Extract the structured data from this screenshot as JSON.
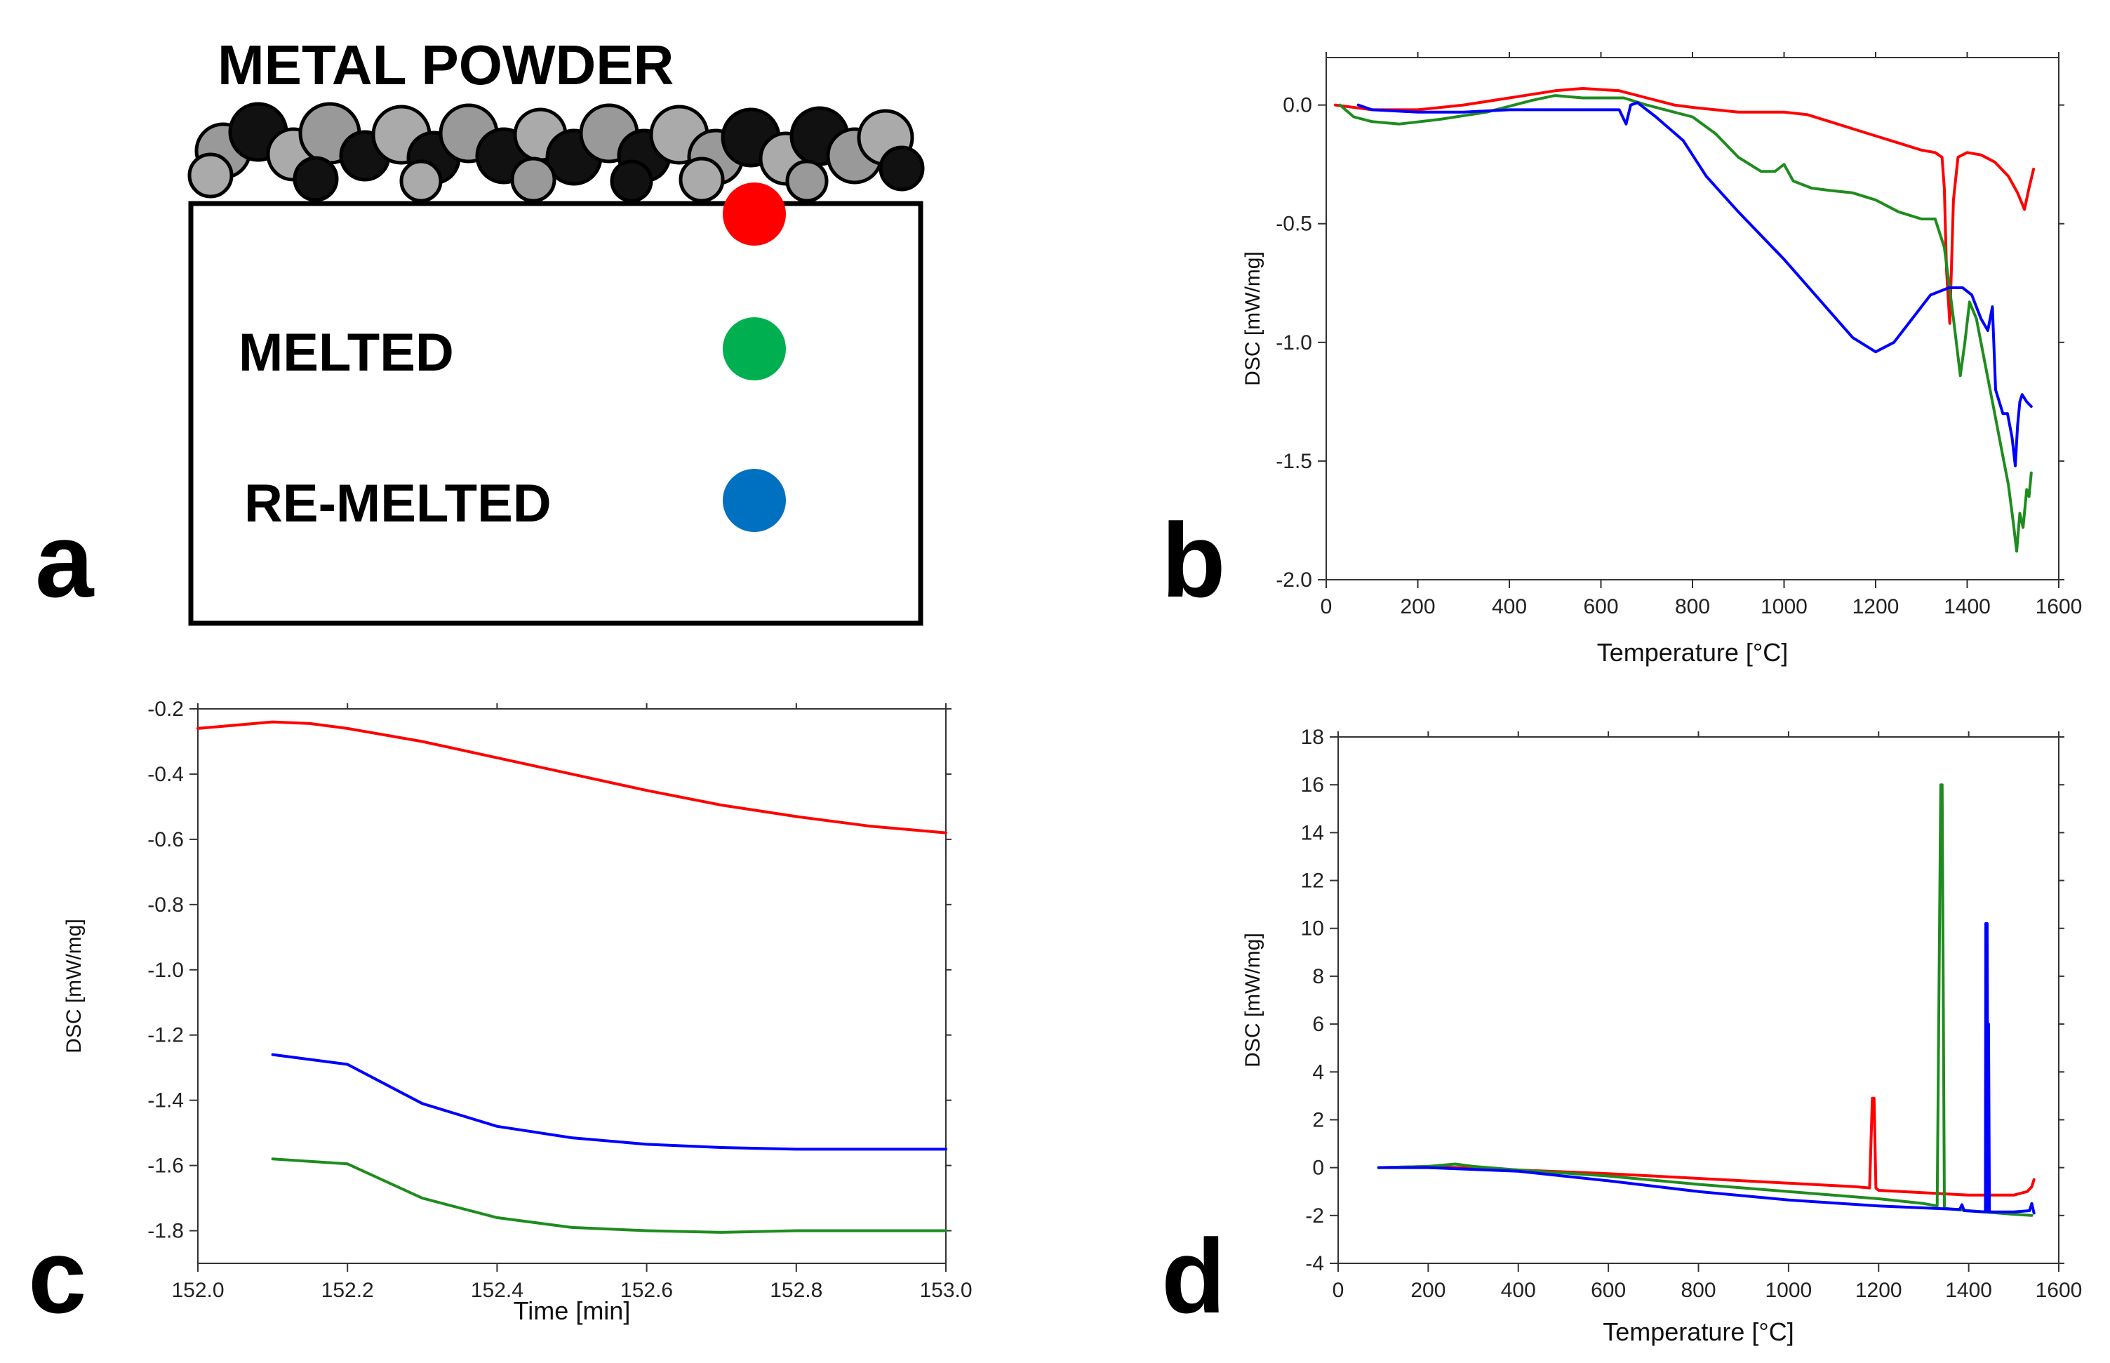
{
  "panels": {
    "a": {
      "letter": "a",
      "title": "METAL POWDER",
      "labels": [
        "MELTED",
        "RE-MELTED"
      ],
      "dot_colors": [
        "#ff0000",
        "#00b050",
        "#0070c0"
      ]
    },
    "b": {
      "letter": "b"
    },
    "c": {
      "letter": "c"
    },
    "d": {
      "letter": "d"
    }
  },
  "colors": {
    "red": "#ff0000",
    "green": "#1e8c1e",
    "blue": "#0000ff",
    "frame": "#333333"
  },
  "chart_data": [
    {
      "id": "b",
      "type": "line",
      "title": "",
      "xlabel": "Temperature [°C]",
      "ylabel": "DSC [mW/mg]",
      "xlim": [
        0,
        1600
      ],
      "ylim": [
        -2.0,
        0.2
      ],
      "xticks": [
        0,
        200,
        400,
        600,
        800,
        1000,
        1200,
        1400,
        1600
      ],
      "yticks": [
        0.0,
        -0.5,
        -1.0,
        -1.5,
        -2.0
      ],
      "xtick_labels": [
        "0",
        "200",
        "400",
        "600",
        "800",
        "1000",
        "1200",
        "1400",
        "1600"
      ],
      "ytick_labels": [
        "0.0",
        "-0.5",
        "-1.0",
        "-1.5",
        "-2.0"
      ],
      "series": [
        {
          "name": "powder",
          "color": "#ff0000",
          "x": [
            20,
            100,
            200,
            300,
            400,
            500,
            560,
            640,
            700,
            760,
            800,
            850,
            900,
            950,
            1000,
            1050,
            1100,
            1150,
            1200,
            1250,
            1300,
            1330,
            1345,
            1350,
            1355,
            1362,
            1370,
            1380,
            1400,
            1430,
            1460,
            1490,
            1510,
            1525,
            1535,
            1545
          ],
          "y": [
            0.0,
            -0.02,
            -0.02,
            0.0,
            0.03,
            0.06,
            0.07,
            0.06,
            0.03,
            0.0,
            -0.01,
            -0.02,
            -0.03,
            -0.03,
            -0.03,
            -0.04,
            -0.07,
            -0.1,
            -0.13,
            -0.16,
            -0.19,
            -0.2,
            -0.22,
            -0.35,
            -0.7,
            -0.92,
            -0.4,
            -0.22,
            -0.2,
            -0.21,
            -0.24,
            -0.3,
            -0.37,
            -0.44,
            -0.35,
            -0.27
          ]
        },
        {
          "name": "melted",
          "color": "#1e8c1e",
          "x": [
            30,
            60,
            100,
            160,
            250,
            350,
            450,
            500,
            560,
            650,
            700,
            760,
            800,
            850,
            900,
            950,
            980,
            1000,
            1020,
            1060,
            1100,
            1150,
            1200,
            1250,
            1300,
            1330,
            1350,
            1370,
            1385,
            1395,
            1405,
            1420,
            1440,
            1460,
            1475,
            1490,
            1500,
            1508,
            1515,
            1522,
            1530,
            1535,
            1540
          ],
          "y": [
            0.0,
            -0.05,
            -0.07,
            -0.08,
            -0.06,
            -0.03,
            0.02,
            0.04,
            0.03,
            0.03,
            0.0,
            -0.03,
            -0.05,
            -0.12,
            -0.22,
            -0.28,
            -0.28,
            -0.25,
            -0.32,
            -0.35,
            -0.36,
            -0.37,
            -0.4,
            -0.45,
            -0.48,
            -0.48,
            -0.6,
            -0.9,
            -1.14,
            -1.0,
            -0.83,
            -0.9,
            -1.1,
            -1.3,
            -1.45,
            -1.6,
            -1.75,
            -1.88,
            -1.72,
            -1.78,
            -1.62,
            -1.65,
            -1.55
          ]
        },
        {
          "name": "re-melted",
          "color": "#0000ff",
          "x": [
            70,
            100,
            200,
            300,
            400,
            500,
            600,
            640,
            655,
            665,
            680,
            720,
            780,
            830,
            900,
            1000,
            1100,
            1150,
            1200,
            1240,
            1280,
            1320,
            1360,
            1390,
            1410,
            1430,
            1445,
            1455,
            1462,
            1470,
            1478,
            1488,
            1498,
            1505,
            1510,
            1515,
            1520,
            1530,
            1540
          ],
          "y": [
            0.0,
            -0.02,
            -0.03,
            -0.03,
            -0.02,
            -0.02,
            -0.02,
            -0.02,
            -0.08,
            0.0,
            0.01,
            -0.05,
            -0.15,
            -0.3,
            -0.45,
            -0.65,
            -0.87,
            -0.98,
            -1.04,
            -1.0,
            -0.9,
            -0.8,
            -0.77,
            -0.77,
            -0.8,
            -0.9,
            -0.95,
            -0.85,
            -1.2,
            -1.25,
            -1.3,
            -1.3,
            -1.4,
            -1.52,
            -1.35,
            -1.25,
            -1.22,
            -1.25,
            -1.27
          ]
        }
      ]
    },
    {
      "id": "c",
      "type": "line",
      "title": "",
      "xlabel": "Time [min]",
      "ylabel": "DSC [mW/mg]",
      "xlim": [
        152.0,
        153.0
      ],
      "ylim": [
        -1.9,
        -0.2
      ],
      "xticks": [
        152.0,
        152.2,
        152.4,
        152.6,
        152.8,
        153.0
      ],
      "yticks": [
        -0.2,
        -0.4,
        -0.6,
        -0.8,
        -1.0,
        -1.2,
        -1.4,
        -1.6,
        -1.8
      ],
      "xtick_labels": [
        "152.0",
        "152.2",
        "152.4",
        "152.6",
        "152.8",
        "153.0"
      ],
      "ytick_labels": [
        "-0.2",
        "-0.4",
        "-0.6",
        "-0.8",
        "-1.0",
        "-1.2",
        "-1.4",
        "-1.6",
        "-1.8"
      ],
      "series": [
        {
          "name": "powder",
          "color": "#ff0000",
          "x": [
            152.0,
            152.05,
            152.1,
            152.15,
            152.2,
            152.3,
            152.4,
            152.5,
            152.6,
            152.7,
            152.8,
            152.9,
            153.0
          ],
          "y": [
            -0.26,
            -0.25,
            -0.24,
            -0.245,
            -0.26,
            -0.3,
            -0.35,
            -0.4,
            -0.45,
            -0.495,
            -0.53,
            -0.56,
            -0.58
          ]
        },
        {
          "name": "re-melted",
          "color": "#0000ff",
          "x": [
            152.1,
            152.2,
            152.3,
            152.4,
            152.5,
            152.6,
            152.7,
            152.8,
            152.9,
            153.0
          ],
          "y": [
            -1.26,
            -1.29,
            -1.41,
            -1.48,
            -1.515,
            -1.535,
            -1.545,
            -1.55,
            -1.55,
            -1.55
          ]
        },
        {
          "name": "melted",
          "color": "#1e8c1e",
          "x": [
            152.1,
            152.2,
            152.3,
            152.4,
            152.5,
            152.6,
            152.7,
            152.8,
            152.9,
            153.0
          ],
          "y": [
            -1.58,
            -1.595,
            -1.7,
            -1.76,
            -1.79,
            -1.8,
            -1.805,
            -1.8,
            -1.8,
            -1.8
          ]
        }
      ]
    },
    {
      "id": "d",
      "type": "line",
      "title": "",
      "xlabel": "Temperature [°C]",
      "ylabel": "DSC [mW/mg]",
      "xlim": [
        0,
        1600
      ],
      "ylim": [
        -4,
        18
      ],
      "xticks": [
        0,
        200,
        400,
        600,
        800,
        1000,
        1200,
        1400,
        1600
      ],
      "yticks": [
        18,
        16,
        14,
        12,
        10,
        8,
        6,
        4,
        2,
        0,
        -2,
        -4
      ],
      "xtick_labels": [
        "0",
        "200",
        "400",
        "600",
        "800",
        "1000",
        "1200",
        "1400",
        "1600"
      ],
      "ytick_labels": [
        "18",
        "16",
        "14",
        "12",
        "10",
        "8",
        "6",
        "4",
        "2",
        "0",
        "-2",
        "-4"
      ],
      "series": [
        {
          "name": "powder",
          "color": "#ff0000",
          "x": [
            90,
            200,
            400,
            600,
            800,
            1000,
            1150,
            1180,
            1186,
            1190,
            1194,
            1200,
            1300,
            1400,
            1500,
            1530,
            1540,
            1545
          ],
          "y": [
            0.0,
            0.05,
            -0.1,
            -0.25,
            -0.45,
            -0.65,
            -0.8,
            -0.85,
            2.9,
            2.9,
            -0.85,
            -0.95,
            -1.05,
            -1.15,
            -1.15,
            -1.0,
            -0.8,
            -0.5
          ]
        },
        {
          "name": "melted",
          "color": "#1e8c1e",
          "x": [
            90,
            200,
            260,
            300,
            400,
            600,
            800,
            1000,
            1200,
            1300,
            1330,
            1338,
            1341,
            1346,
            1400,
            1500,
            1540
          ],
          "y": [
            0.0,
            0.05,
            0.15,
            0.05,
            -0.1,
            -0.35,
            -0.7,
            -1.0,
            -1.3,
            -1.5,
            -1.6,
            16.0,
            16.0,
            -1.7,
            -1.8,
            -1.95,
            -2.0
          ]
        },
        {
          "name": "re-melted",
          "color": "#0000ff",
          "x": [
            90,
            200,
            400,
            600,
            800,
            1000,
            1200,
            1380,
            1385,
            1390,
            1437,
            1438,
            1441,
            1443,
            1444,
            1446,
            1500,
            1535,
            1540,
            1545
          ],
          "y": [
            0.0,
            0.0,
            -0.15,
            -0.55,
            -1.0,
            -1.35,
            -1.6,
            -1.75,
            -1.55,
            -1.8,
            -1.85,
            10.2,
            10.2,
            -1.85,
            6.0,
            -1.85,
            -1.85,
            -1.8,
            -1.5,
            -1.9
          ]
        }
      ]
    }
  ]
}
